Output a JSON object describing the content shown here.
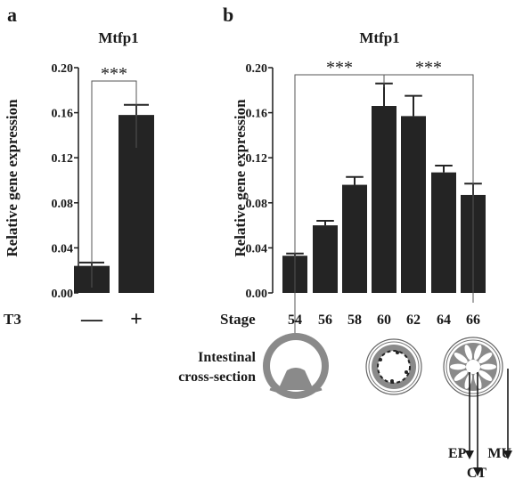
{
  "panels": {
    "a": {
      "letter": "a"
    },
    "b": {
      "letter": "b"
    }
  },
  "chart_data": [
    {
      "type": "bar",
      "title": "Mtfp1",
      "ylabel": "Relative gene expression",
      "xlabel": "T3",
      "categories": [
        "—",
        "+"
      ],
      "values": [
        0.024,
        0.158
      ],
      "errors": [
        0.003,
        0.009
      ],
      "ylim": [
        0,
        0.2
      ],
      "yticks": [
        "0.00",
        "0.04",
        "0.08",
        "0.12",
        "0.16",
        "0.20"
      ],
      "significance": [
        {
          "from": 0,
          "to": 1,
          "label": "***"
        }
      ],
      "colors": {
        "bar": "#242424"
      }
    },
    {
      "type": "bar",
      "title": "Mtfp1",
      "ylabel": "Relative gene expression",
      "xlabel": "Stage",
      "categories": [
        "54",
        "56",
        "58",
        "60",
        "62",
        "64",
        "66"
      ],
      "values": [
        0.033,
        0.06,
        0.096,
        0.166,
        0.157,
        0.107,
        0.087
      ],
      "errors": [
        0.002,
        0.004,
        0.007,
        0.02,
        0.018,
        0.006,
        0.01
      ],
      "ylim": [
        0,
        0.2
      ],
      "yticks": [
        "0.00",
        "0.04",
        "0.08",
        "0.12",
        "0.16",
        "0.20"
      ],
      "significance": [
        {
          "from": 0,
          "to": 3,
          "label": "***"
        },
        {
          "from": 3,
          "to": 6,
          "label": "***"
        }
      ],
      "colors": {
        "bar": "#242424"
      }
    }
  ],
  "illustration": {
    "label_line1": "Intestinal",
    "label_line2": "cross-section",
    "layers": [
      "EP",
      "CT",
      "MU"
    ],
    "colors": {
      "gray": "#8a8a8a",
      "dark": "#3a3a3a"
    }
  }
}
